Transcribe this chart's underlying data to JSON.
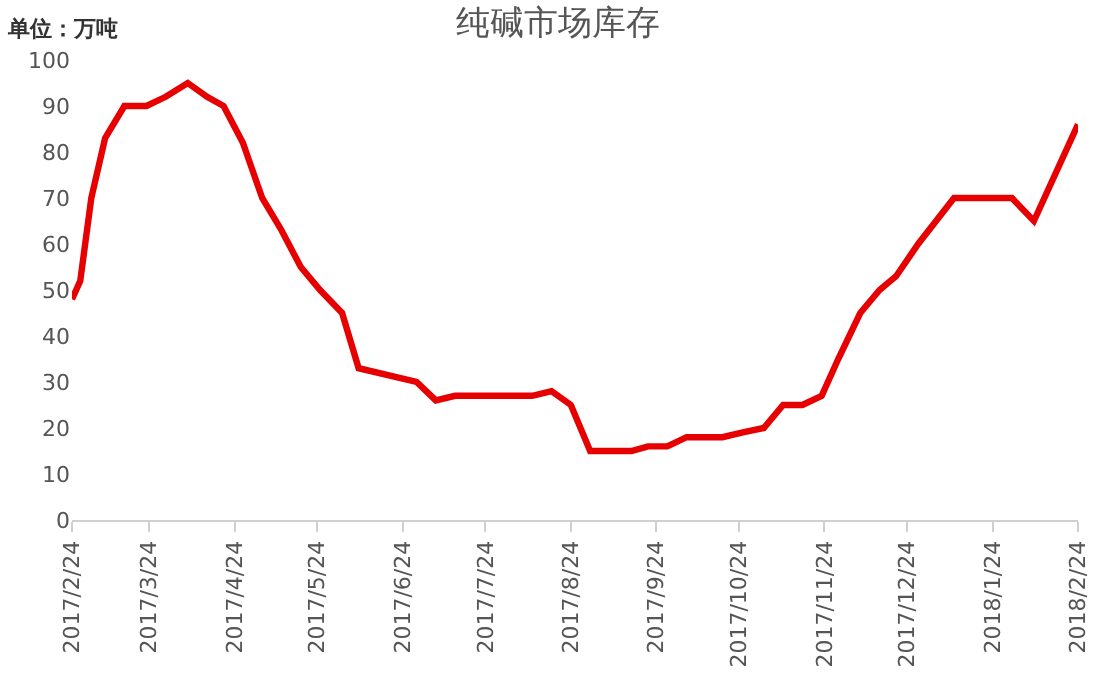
{
  "chart_data": {
    "type": "line",
    "title": "纯碱市场库存",
    "annotations": [
      "单位：万吨"
    ],
    "x": [
      "2017-02-24",
      "2017-02-27",
      "2017-03-03",
      "2017-03-08",
      "2017-03-15",
      "2017-03-23",
      "2017-03-30",
      "2017-04-07",
      "2017-04-14",
      "2017-04-20",
      "2017-04-27",
      "2017-05-04",
      "2017-05-11",
      "2017-05-18",
      "2017-05-25",
      "2017-06-02",
      "2017-06-08",
      "2017-06-29",
      "2017-07-06",
      "2017-07-13",
      "2017-08-10",
      "2017-08-17",
      "2017-08-24",
      "2017-08-31",
      "2017-09-15",
      "2017-09-21",
      "2017-09-28",
      "2017-10-05",
      "2017-10-18",
      "2017-10-25",
      "2017-11-02",
      "2017-11-09",
      "2017-11-16",
      "2017-11-23",
      "2017-11-29",
      "2017-12-07",
      "2017-12-14",
      "2017-12-20",
      "2017-12-28",
      "2018-01-10",
      "2018-01-31",
      "2018-02-08",
      "2018-02-24"
    ],
    "series": [
      {
        "color": "#e60000",
        "values": [
          48,
          52,
          70,
          83,
          90,
          90,
          92,
          95,
          92,
          90,
          82,
          70,
          63,
          55,
          50,
          45,
          33,
          30,
          26,
          27,
          27,
          28,
          25,
          15,
          15,
          16,
          16,
          18,
          18,
          19,
          20,
          25,
          25,
          27,
          35,
          45,
          50,
          53,
          60,
          70,
          70,
          65,
          86
        ]
      }
    ],
    "xlim": [
      "2017-02-24",
      "2018-02-24"
    ],
    "xticks": [
      {
        "value": "2017-02-24",
        "label": "2017/2/24"
      },
      {
        "value": "2017-03-24",
        "label": "2017/3/24"
      },
      {
        "value": "2017-04-24",
        "label": "2017/4/24"
      },
      {
        "value": "2017-05-24",
        "label": "2017/5/24"
      },
      {
        "value": "2017-06-24",
        "label": "2017/6/24"
      },
      {
        "value": "2017-07-24",
        "label": "2017/7/24"
      },
      {
        "value": "2017-08-24",
        "label": "2017/8/24"
      },
      {
        "value": "2017-09-24",
        "label": "2017/9/24"
      },
      {
        "value": "2017-10-24",
        "label": "2017/10/24"
      },
      {
        "value": "2017-11-24",
        "label": "2017/11/24"
      },
      {
        "value": "2017-12-24",
        "label": "2017/12/24"
      },
      {
        "value": "2018-01-24",
        "label": "2018/1/24"
      },
      {
        "value": "2018-02-24",
        "label": "2018/2/24"
      }
    ],
    "ylim": [
      0,
      100
    ],
    "yticks": [
      0,
      10,
      20,
      30,
      40,
      50,
      60,
      70,
      80,
      90,
      100
    ],
    "marker": "none",
    "line_style": "solid"
  }
}
